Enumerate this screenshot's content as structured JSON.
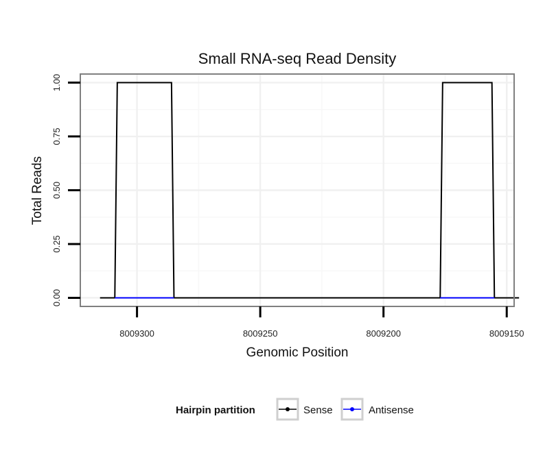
{
  "chart_data": {
    "type": "line",
    "title": "Small RNA-seq Read Density",
    "xlabel": "Genomic Position",
    "ylabel": "Total Reads",
    "xlim": [
      8009323,
      8009147
    ],
    "ylim": [
      -0.04,
      1.04
    ],
    "x_reversed": true,
    "grid": true,
    "x_ticks": [
      8009300,
      8009250,
      8009200,
      8009150
    ],
    "x_tick_labels": [
      "8009300",
      "8009250",
      "8009200",
      "8009150"
    ],
    "y_ticks": [
      0,
      0.25,
      0.5,
      0.75,
      1.0
    ],
    "y_tick_labels": [
      "0.00",
      "0.25",
      "0.50",
      "0.75",
      "1.00"
    ],
    "legend": {
      "title": "Hairpin partition",
      "placement": "bottom",
      "entries": [
        {
          "label": "Sense",
          "color": "#000000"
        },
        {
          "label": "Antisense",
          "color": "#0000ff"
        }
      ]
    },
    "series": [
      {
        "name": "Sense",
        "color": "#000000",
        "x": [
          8009315,
          8009309,
          8009308,
          8009286,
          8009285,
          8009177,
          8009176,
          8009156,
          8009155,
          8009145
        ],
        "y": [
          0,
          0,
          1,
          1,
          0,
          0,
          1,
          1,
          0,
          0
        ]
      },
      {
        "name": "Antisense",
        "color": "#0000ff",
        "x": [
          8009309,
          8009285,
          8009177,
          8009155
        ],
        "y": [
          0,
          0,
          0,
          0
        ],
        "segments": [
          [
            0,
            1
          ],
          [
            2,
            3
          ]
        ]
      }
    ]
  }
}
